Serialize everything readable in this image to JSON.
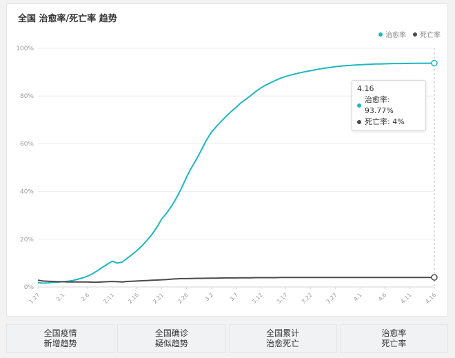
{
  "title": "全国 治愈率/死亡率 趋势",
  "colors": {
    "cure": "#1db7c1",
    "death": "#4a4a4a",
    "grid": "#ececec",
    "axis_text": "#999999",
    "active_tab": "#19bcc6"
  },
  "tooltip": {
    "date": "4.16",
    "rows": [
      {
        "label": "治愈率: 93.77%",
        "color": "#1db7c1"
      },
      {
        "label": "死亡率: 4%",
        "color": "#4a4a4a"
      }
    ]
  },
  "tabs": [
    {
      "line1": "全国疫情",
      "line2": "新增趋势",
      "active": false
    },
    {
      "line1": "全国确诊",
      "line2": "疑似趋势",
      "active": false
    },
    {
      "line1": "全国累计",
      "line2": "治愈死亡",
      "active": false
    },
    {
      "line1": "治愈率",
      "line2": "死亡率",
      "active": true
    }
  ],
  "chart_data": {
    "type": "line",
    "title": "全国 治愈率/死亡率 趋势",
    "xlabel": "",
    "ylabel": "",
    "ylim": [
      0,
      100
    ],
    "yticks": [
      "0%",
      "20%",
      "40%",
      "60%",
      "80%",
      "100%"
    ],
    "xticks": [
      "1.27",
      "2.1",
      "2.6",
      "2.11",
      "2.16",
      "2.21",
      "2.26",
      "3.2",
      "3.7",
      "3.12",
      "3.17",
      "3.22",
      "3.27",
      "4.1",
      "4.6",
      "4.11",
      "4.16"
    ],
    "legend": [
      "治愈率",
      "死亡率"
    ],
    "legend_position": "top-right",
    "grid": true,
    "x": [
      "1.27",
      "1.28",
      "1.29",
      "1.30",
      "1.31",
      "2.1",
      "2.2",
      "2.3",
      "2.4",
      "2.5",
      "2.6",
      "2.7",
      "2.8",
      "2.9",
      "2.10",
      "2.11",
      "2.12",
      "2.13",
      "2.14",
      "2.15",
      "2.16",
      "2.17",
      "2.18",
      "2.19",
      "2.20",
      "2.21",
      "2.22",
      "2.23",
      "2.24",
      "2.25",
      "2.26",
      "2.27",
      "2.28",
      "2.29",
      "3.1",
      "3.2",
      "3.3",
      "3.4",
      "3.5",
      "3.6",
      "3.7",
      "3.8",
      "3.9",
      "3.10",
      "3.11",
      "3.12",
      "3.13",
      "3.14",
      "3.15",
      "3.16",
      "3.17",
      "3.18",
      "3.19",
      "3.20",
      "3.21",
      "3.22",
      "3.23",
      "3.24",
      "3.25",
      "3.26",
      "3.27",
      "3.28",
      "3.29",
      "3.30",
      "3.31",
      "4.1",
      "4.2",
      "4.3",
      "4.4",
      "4.5",
      "4.6",
      "4.7",
      "4.8",
      "4.9",
      "4.10",
      "4.11",
      "4.12",
      "4.13",
      "4.14",
      "4.15",
      "4.16"
    ],
    "series": [
      {
        "name": "治愈率",
        "values": [
          1.8,
          1.6,
          1.7,
          1.9,
          2.0,
          2.2,
          2.4,
          2.7,
          3.2,
          3.8,
          4.5,
          5.5,
          6.8,
          8.2,
          9.5,
          10.8,
          10.0,
          10.4,
          12.0,
          13.6,
          15.3,
          17.2,
          19.5,
          22.0,
          25.0,
          28.5,
          31.0,
          34.0,
          37.5,
          41.5,
          46.0,
          50.0,
          53.5,
          57.5,
          61.5,
          64.8,
          67.2,
          69.4,
          71.5,
          73.5,
          75.3,
          77.2,
          78.7,
          80.3,
          82.0,
          83.4,
          84.6,
          85.6,
          86.6,
          87.5,
          88.2,
          88.8,
          89.3,
          89.8,
          90.2,
          90.6,
          91.0,
          91.4,
          91.7,
          92.0,
          92.3,
          92.5,
          92.7,
          92.8,
          93.0,
          93.1,
          93.2,
          93.3,
          93.4,
          93.45,
          93.5,
          93.55,
          93.6,
          93.62,
          93.65,
          93.68,
          93.7,
          93.72,
          93.74,
          93.76,
          93.77
        ]
      },
      {
        "name": "死亡率",
        "values": [
          2.8,
          2.5,
          2.4,
          2.3,
          2.2,
          2.2,
          2.1,
          2.1,
          2.1,
          2.1,
          2.1,
          2.0,
          2.0,
          2.1,
          2.2,
          2.3,
          2.2,
          2.1,
          2.3,
          2.4,
          2.5,
          2.6,
          2.7,
          2.8,
          2.9,
          3.0,
          3.1,
          3.3,
          3.4,
          3.5,
          3.5,
          3.55,
          3.6,
          3.6,
          3.65,
          3.7,
          3.7,
          3.75,
          3.8,
          3.8,
          3.8,
          3.85,
          3.85,
          3.85,
          3.9,
          3.9,
          3.9,
          3.9,
          3.9,
          3.95,
          3.95,
          3.95,
          3.95,
          3.95,
          3.95,
          3.95,
          4.0,
          4.0,
          4.0,
          4.0,
          4.0,
          4.0,
          4.0,
          4.0,
          4.0,
          4.0,
          4.0,
          4.0,
          4.0,
          4.0,
          4.0,
          4.0,
          4.0,
          4.0,
          4.0,
          4.0,
          4.0,
          4.0,
          4.0,
          4.0,
          4.0
        ]
      }
    ]
  }
}
